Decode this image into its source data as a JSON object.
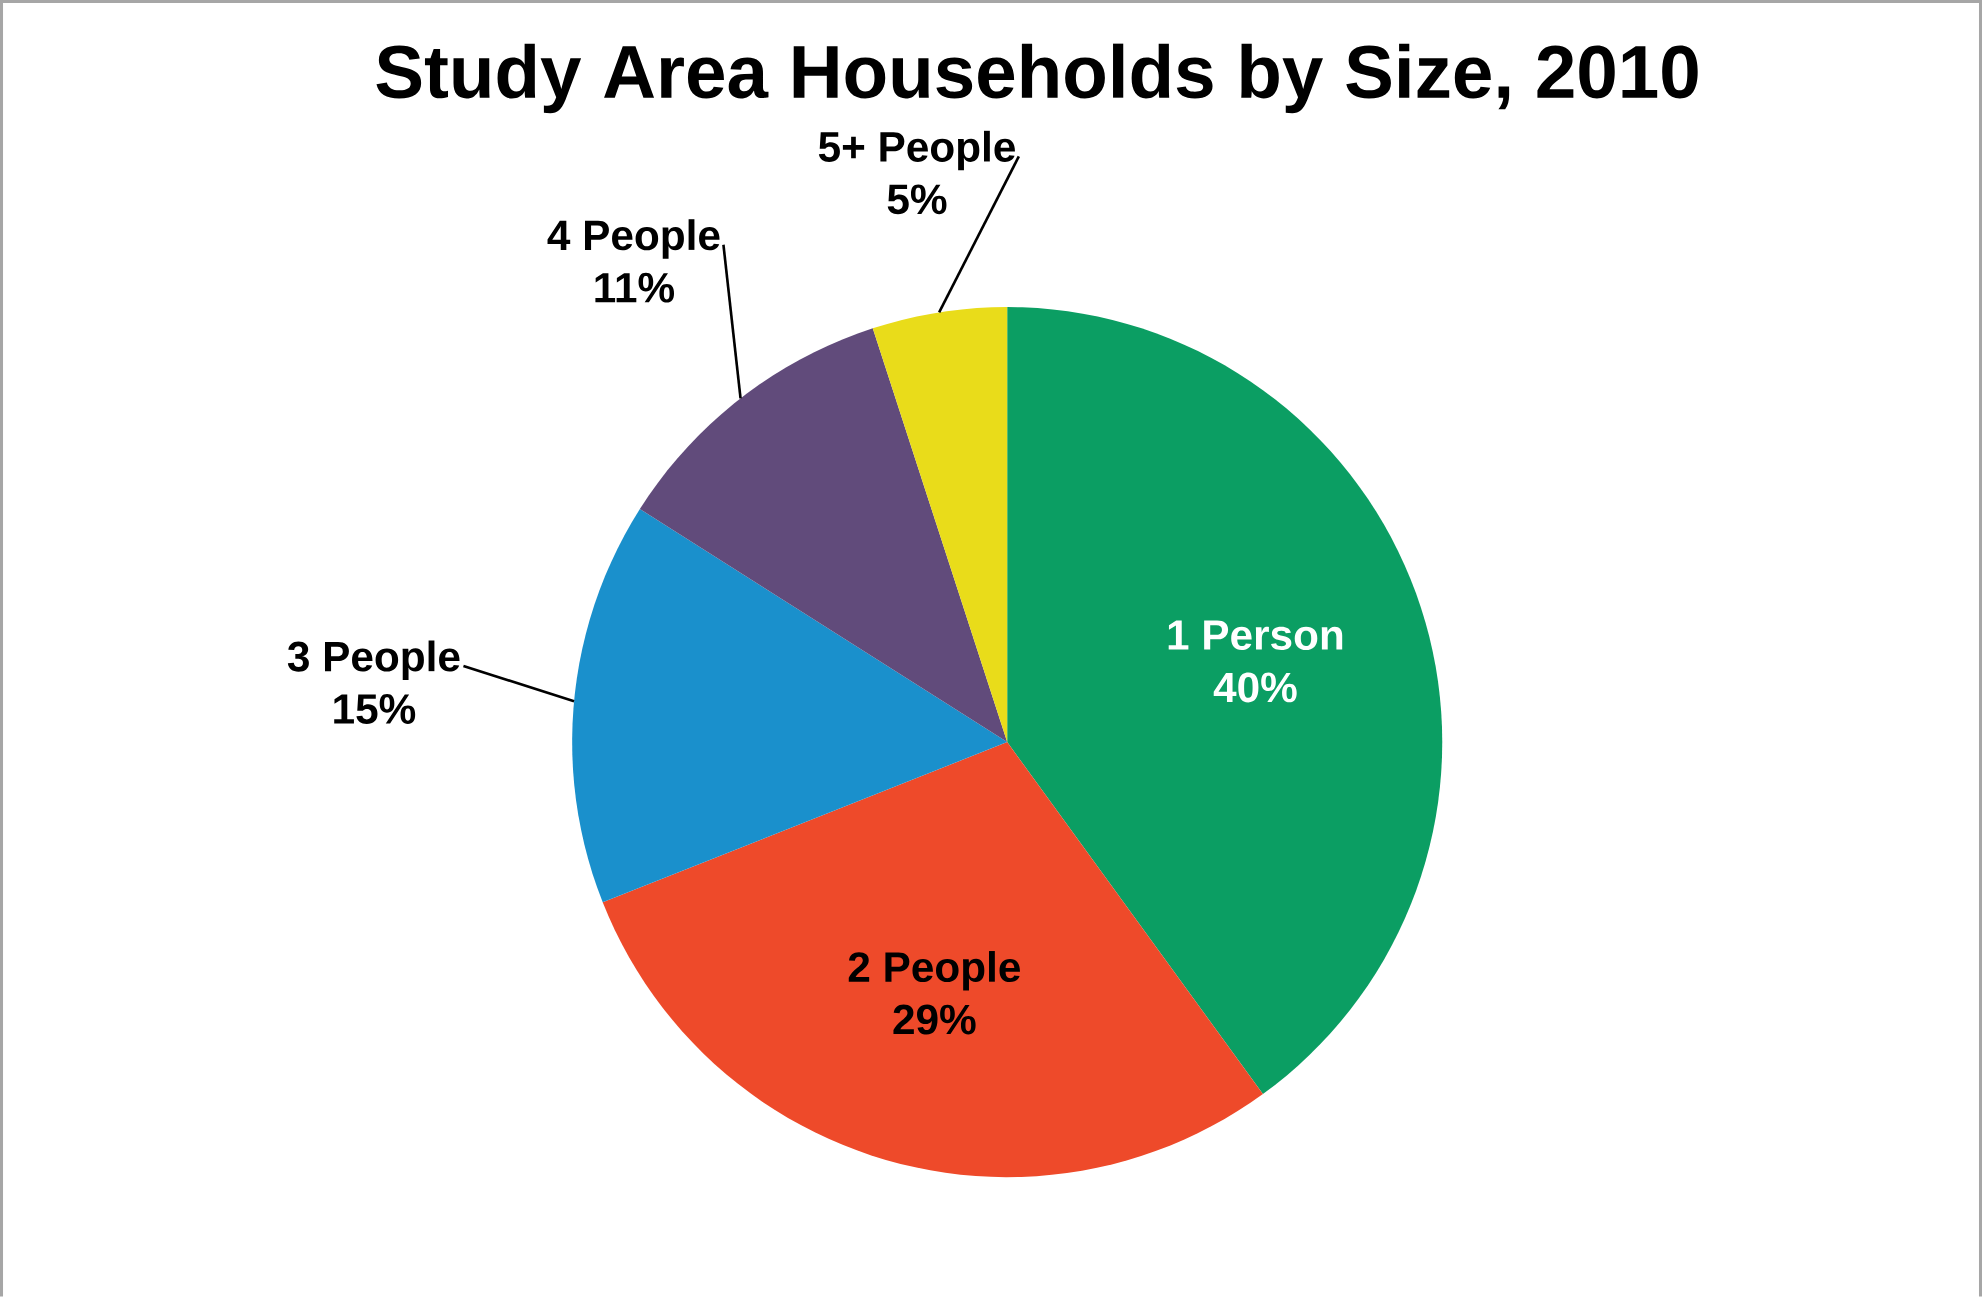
{
  "chart_data": {
    "type": "pie",
    "title": "Study Area Households by Size, 2010",
    "categories": [
      "1 Person",
      "2 People",
      "3 People",
      "4 People",
      "5+ People"
    ],
    "values": [
      40,
      29,
      15,
      11,
      5
    ],
    "colors": [
      "#0b9e63",
      "#ee4a2a",
      "#1a90cc",
      "#614b7b",
      "#e9dc1a"
    ],
    "value_labels": [
      "40%",
      "29%",
      "15%",
      "11%",
      "5%"
    ]
  }
}
